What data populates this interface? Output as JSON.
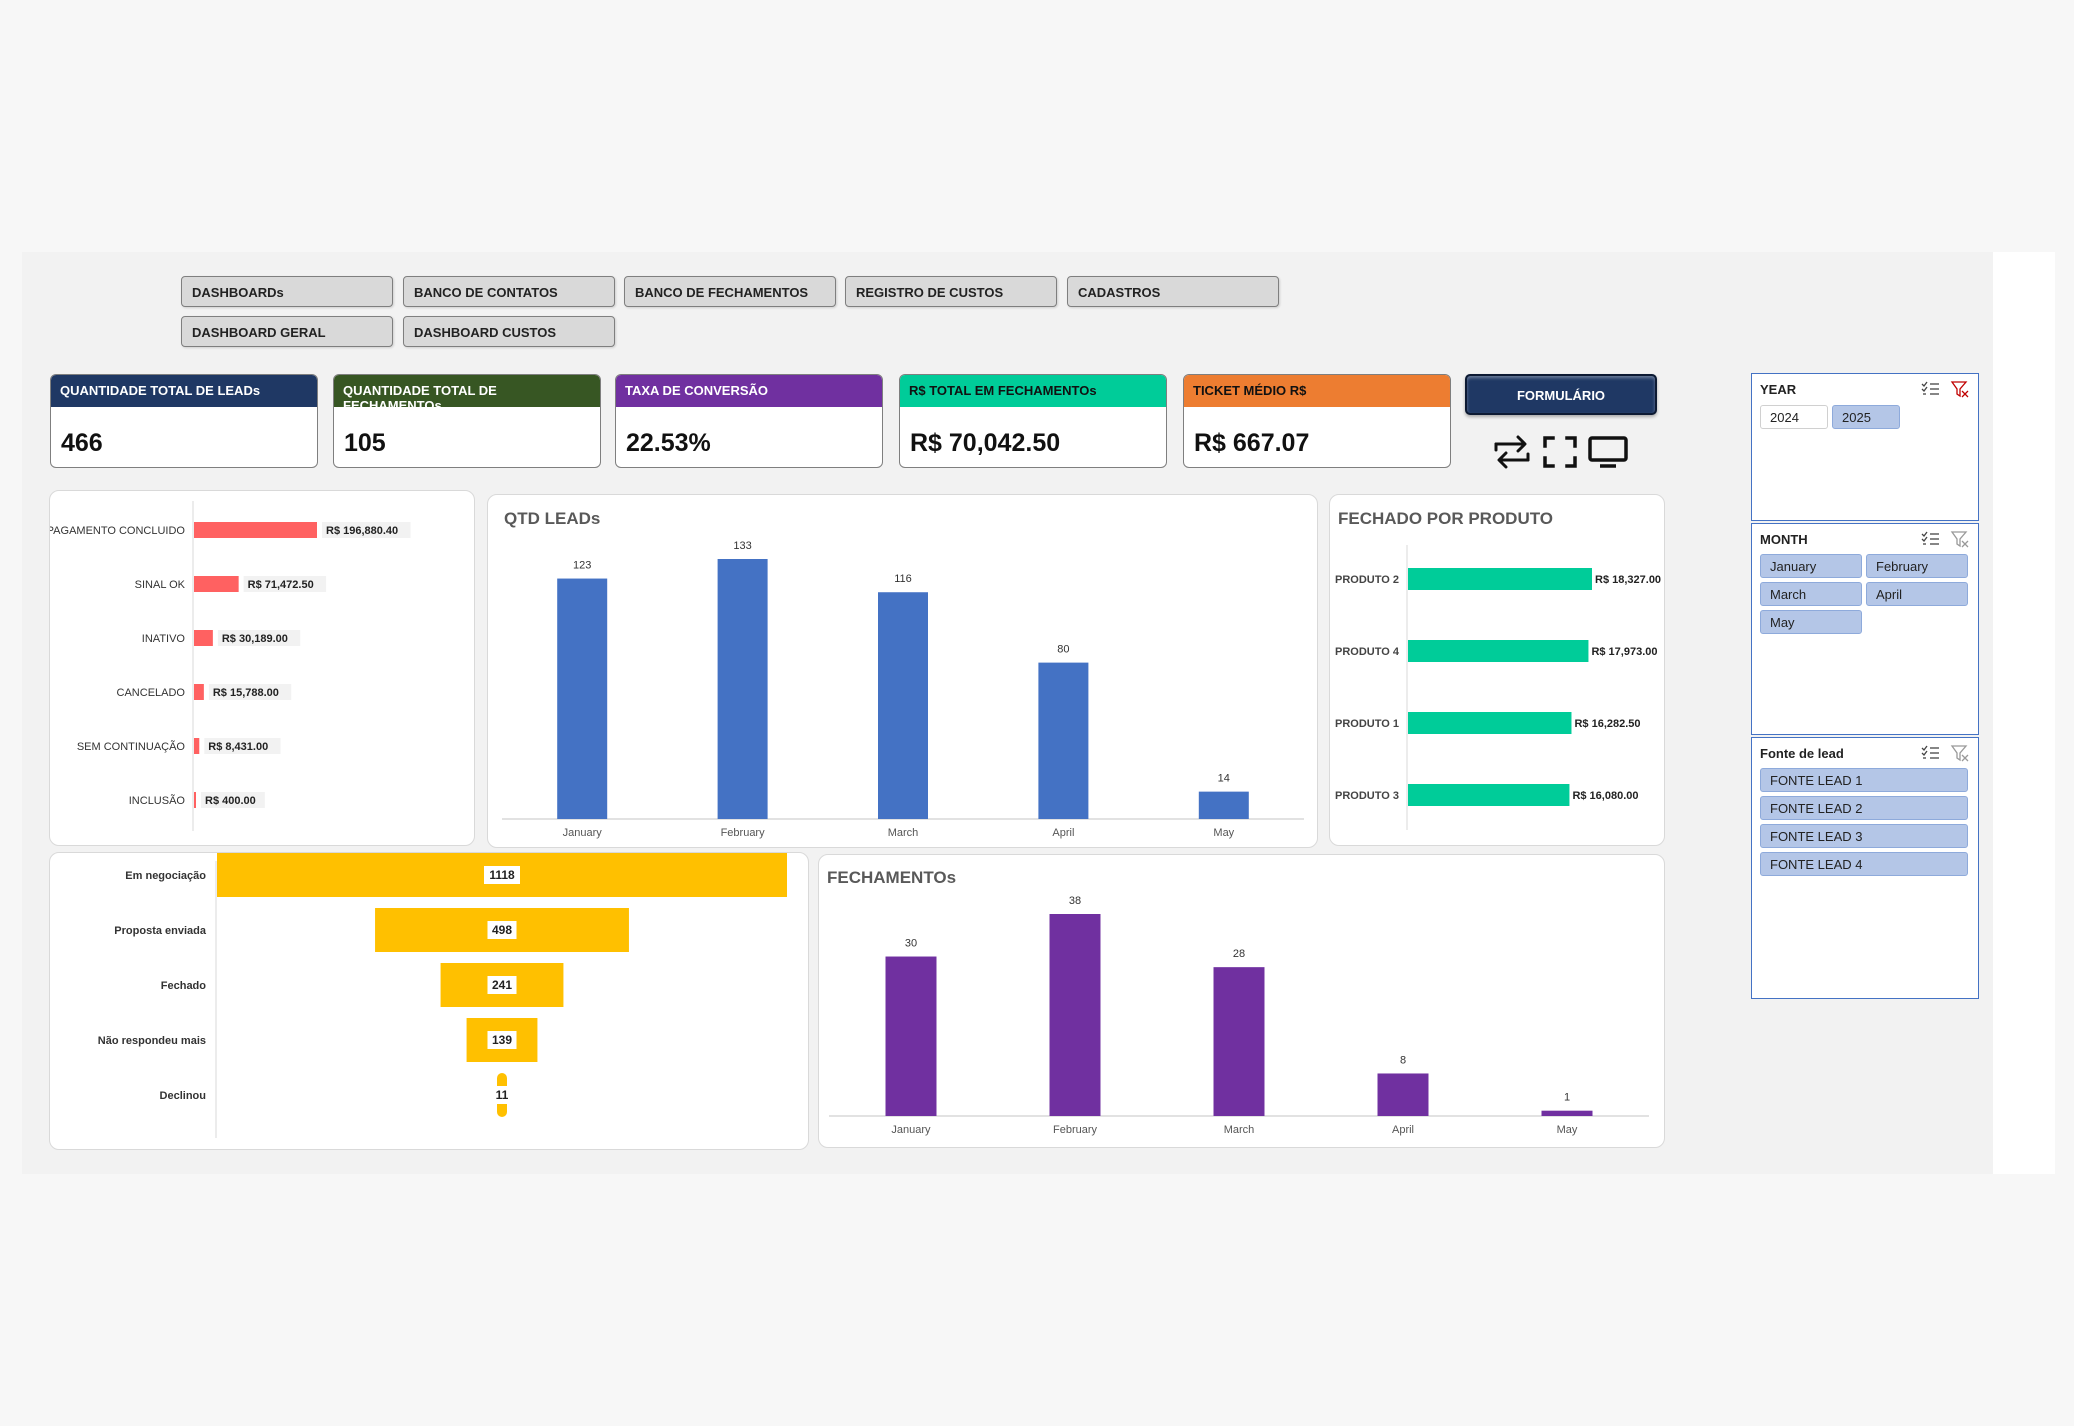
{
  "nav": {
    "row1": [
      "DASHBOARDs",
      "BANCO DE CONTATOS",
      "BANCO DE FECHAMENTOS",
      "REGISTRO DE CUSTOS",
      "CADASTROS"
    ],
    "row2": [
      "DASHBOARD GERAL",
      "DASHBOARD CUSTOS"
    ]
  },
  "kpis": [
    {
      "label": "QUANTIDADE TOTAL DE LEADs",
      "value": "466",
      "color": "#1f3864"
    },
    {
      "label": "QUANTIDADE TOTAL DE FECHAMENTOs",
      "value": "105",
      "color": "#375623"
    },
    {
      "label": "TAXA DE CONVERSÃO",
      "value": "22.53%",
      "color": "#7030a0"
    },
    {
      "label": "R$ TOTAL EM FECHAMENTOs",
      "value": "R$ 70,042.50",
      "color": "#00cc99"
    },
    {
      "label": "TICKET MÉDIO R$",
      "value": "R$ 667.07",
      "color": "#ed7d31"
    }
  ],
  "form_button": "FORMULÁRIO",
  "tool_icons": [
    "refresh-icon",
    "fullscreen-icon",
    "monitor-icon"
  ],
  "slicers": {
    "year": {
      "title": "YEAR",
      "items": [
        {
          "label": "2024",
          "selected": false
        },
        {
          "label": "2025",
          "selected": true
        }
      ]
    },
    "month": {
      "title": "MONTH",
      "items": [
        {
          "label": "January",
          "selected": true
        },
        {
          "label": "February",
          "selected": true
        },
        {
          "label": "March",
          "selected": true
        },
        {
          "label": "April",
          "selected": true
        },
        {
          "label": "May",
          "selected": true
        }
      ]
    },
    "fonte": {
      "title": "Fonte de lead",
      "items": [
        {
          "label": "FONTE LEAD 1",
          "selected": true
        },
        {
          "label": "FONTE LEAD 2",
          "selected": true
        },
        {
          "label": "FONTE LEAD 3",
          "selected": true
        },
        {
          "label": "FONTE LEAD 4",
          "selected": true
        }
      ]
    }
  },
  "chart_data": [
    {
      "id": "status",
      "type": "bar",
      "orientation": "horizontal",
      "title": "",
      "color": "#ff6161",
      "categories": [
        "PAGAMENTO CONCLUIDO",
        "SINAL OK",
        "INATIVO",
        "CANCELADO",
        "SEM CONTINUAÇÃO",
        "INCLUSÃO"
      ],
      "values": [
        196880.4,
        71472.5,
        30189.0,
        15788.0,
        8431.0,
        400.0
      ],
      "labels": [
        "R$ 196,880.40",
        "R$ 71,472.50",
        "R$ 30,189.00",
        "R$ 15,788.00",
        "R$ 8,431.00",
        "R$ 400.00"
      ]
    },
    {
      "id": "qtd_leads",
      "type": "bar",
      "title": "QTD LEADs",
      "color": "#4472c4",
      "categories": [
        "January",
        "February",
        "March",
        "April",
        "May"
      ],
      "values": [
        123,
        133,
        116,
        80,
        14
      ]
    },
    {
      "id": "produto",
      "type": "bar",
      "orientation": "horizontal",
      "title": "FECHADO POR PRODUTO",
      "color": "#00cc99",
      "categories": [
        "PRODUTO 2",
        "PRODUTO 4",
        "PRODUTO 1",
        "PRODUTO 3"
      ],
      "values": [
        18327.0,
        17973.0,
        16282.5,
        16080.0
      ],
      "labels": [
        "R$ 18,327.00",
        "R$ 17,973.00",
        "R$ 16,282.50",
        "R$ 16,080.00"
      ]
    },
    {
      "id": "funil",
      "type": "bar",
      "orientation": "funnel",
      "title": "",
      "color": "#ffc000",
      "categories": [
        "Em negociação",
        "Proposta enviada",
        "Fechado",
        "Não respondeu mais",
        "Declinou"
      ],
      "values": [
        1118,
        498,
        241,
        139,
        11
      ]
    },
    {
      "id": "fechamentos",
      "type": "bar",
      "title": "FECHAMENTOs",
      "color": "#7030a0",
      "categories": [
        "January",
        "February",
        "March",
        "April",
        "May"
      ],
      "values": [
        30,
        38,
        28,
        8,
        1
      ]
    }
  ]
}
